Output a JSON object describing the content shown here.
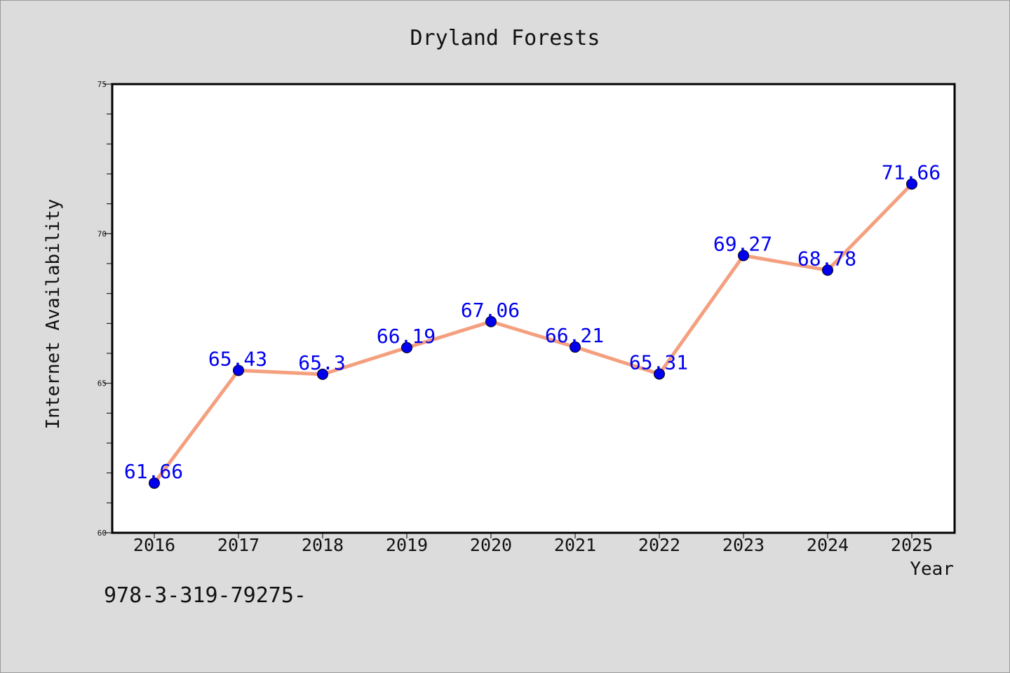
{
  "chart_data": {
    "type": "line",
    "title": "Dryland Forests",
    "xlabel": "Year",
    "ylabel": "Internet Availability",
    "categories": [
      "2016",
      "2017",
      "2018",
      "2019",
      "2020",
      "2021",
      "2022",
      "2023",
      "2024",
      "2025"
    ],
    "series": [
      {
        "values": [
          61.66,
          65.43,
          65.3,
          66.19,
          67.06,
          66.21,
          65.31,
          69.27,
          68.78,
          71.66
        ],
        "data_labels": [
          "61.66",
          "65.43",
          "65.3",
          "66.19",
          "67.06",
          "66.21",
          "65.31",
          "69.27",
          "68.78",
          "71.66"
        ],
        "line_color": "#f4a07f",
        "marker_color": "#0000ee"
      }
    ],
    "ylim": [
      60,
      75
    ],
    "y_major_ticks": [
      60,
      65,
      70,
      75
    ],
    "y_minor_step": 1,
    "grid": false,
    "legend": "none",
    "colors": {
      "background": "#dcdcdc",
      "plot_background": "#ffffff",
      "axis": "#000000",
      "label_text": "#0000ee"
    }
  },
  "footer": {
    "text": "978-3-319-79275-"
  }
}
